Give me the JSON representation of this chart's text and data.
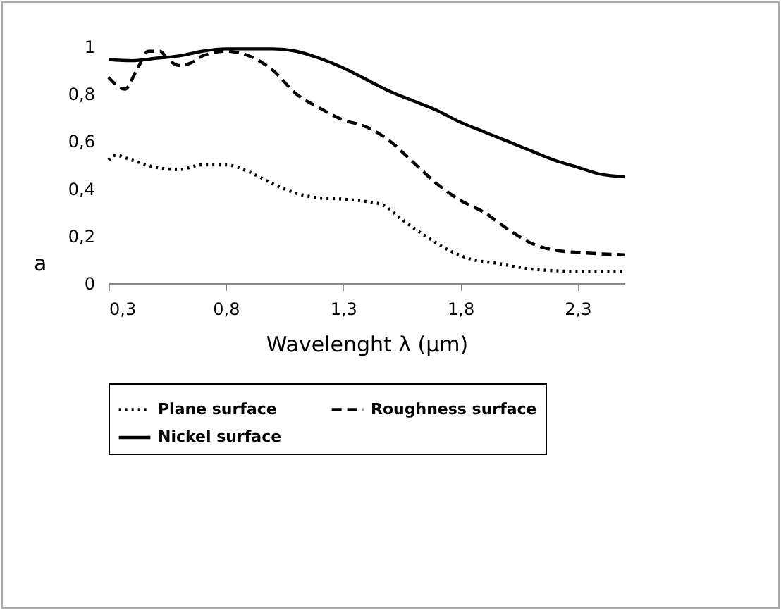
{
  "chart_data": {
    "type": "line",
    "xlabel": "Wavelenght λ (µm)",
    "annotations": [
      "a"
    ],
    "xlim": [
      0.3,
      2.5
    ],
    "xticks": [
      {
        "value": 0.3,
        "label": "0,3"
      },
      {
        "value": 0.8,
        "label": "0,8"
      },
      {
        "value": 1.3,
        "label": "1,3"
      },
      {
        "value": 1.8,
        "label": "1,8"
      },
      {
        "value": 2.3,
        "label": "2,3"
      }
    ],
    "ylim": [
      0,
      1
    ],
    "yticks": [
      0,
      {
        "value": 0.2,
        "label": "0,2"
      },
      {
        "value": 0.4,
        "label": "0,4"
      },
      {
        "value": 0.6,
        "label": "0,6"
      },
      {
        "value": 0.8,
        "label": "0,8"
      },
      1
    ],
    "grid": false,
    "legend": "bottom",
    "marker": "none",
    "series": [
      {
        "name": "Plane surface",
        "color": "#000000",
        "line_style": "dotted",
        "x": [
          0.3,
          0.33,
          0.4,
          0.5,
          0.6,
          0.7,
          0.8,
          0.9,
          1.0,
          1.1,
          1.2,
          1.3,
          1.4,
          1.47,
          1.55,
          1.65,
          1.75,
          1.85,
          1.95,
          2.1,
          2.3,
          2.5
        ],
        "values": [
          0.52,
          0.54,
          0.52,
          0.49,
          0.48,
          0.5,
          0.5,
          0.47,
          0.42,
          0.38,
          0.36,
          0.355,
          0.345,
          0.33,
          0.27,
          0.2,
          0.14,
          0.1,
          0.085,
          0.06,
          0.05,
          0.05
        ]
      },
      {
        "name": "Roughness surface",
        "color": "#000000",
        "line_style": "dashed",
        "x": [
          0.3,
          0.37,
          0.42,
          0.47,
          0.52,
          0.55,
          0.6,
          0.65,
          0.7,
          0.8,
          0.9,
          1.0,
          1.1,
          1.2,
          1.3,
          1.4,
          1.5,
          1.6,
          1.7,
          1.8,
          1.9,
          2.0,
          2.1,
          2.2,
          2.3,
          2.5
        ],
        "values": [
          0.87,
          0.82,
          0.9,
          0.98,
          0.98,
          0.95,
          0.92,
          0.93,
          0.96,
          0.98,
          0.96,
          0.9,
          0.8,
          0.74,
          0.69,
          0.66,
          0.6,
          0.51,
          0.42,
          0.35,
          0.3,
          0.23,
          0.17,
          0.14,
          0.13,
          0.12
        ]
      },
      {
        "name": "Nickel surface",
        "color": "#000000",
        "line_style": "solid",
        "x": [
          0.3,
          0.4,
          0.5,
          0.6,
          0.7,
          0.8,
          0.9,
          1.0,
          1.1,
          1.2,
          1.3,
          1.4,
          1.5,
          1.6,
          1.7,
          1.8,
          1.9,
          2.0,
          2.1,
          2.2,
          2.3,
          2.4,
          2.5
        ],
        "values": [
          0.945,
          0.94,
          0.95,
          0.96,
          0.98,
          0.99,
          0.99,
          0.99,
          0.98,
          0.95,
          0.91,
          0.86,
          0.81,
          0.77,
          0.73,
          0.68,
          0.64,
          0.6,
          0.56,
          0.52,
          0.49,
          0.46,
          0.45
        ]
      }
    ]
  }
}
